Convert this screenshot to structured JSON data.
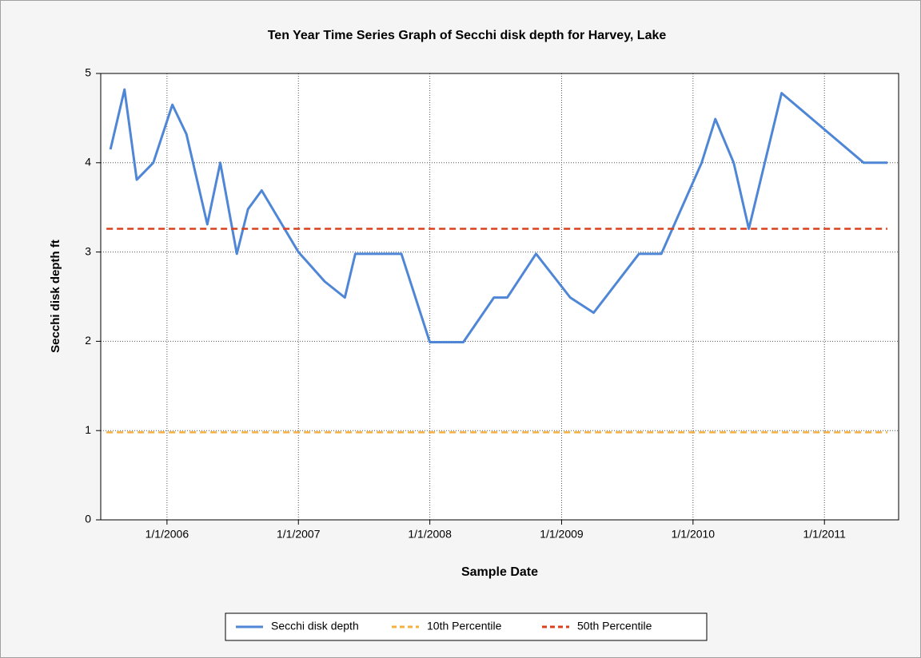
{
  "chart_data": {
    "type": "line",
    "title": "Ten Year Time Series Graph of Secchi disk depth for Harvey, Lake",
    "xlabel": "Sample Date",
    "ylabel": "Secchi disk depth ft",
    "x": [
      "2005-07-28",
      "2005-09-05",
      "2005-10-09",
      "2005-11-24",
      "2006-01-16",
      "2006-02-24",
      "2006-04-23",
      "2006-05-29",
      "2006-07-14",
      "2006-08-14",
      "2006-09-21",
      "2007-01-01",
      "2007-03-15",
      "2007-05-10",
      "2007-06-08",
      "2007-10-14",
      "2008-01-01",
      "2008-04-03",
      "2008-06-27",
      "2008-08-03",
      "2008-10-22",
      "2009-01-25",
      "2009-03-31",
      "2009-08-04",
      "2009-10-05",
      "2010-01-25",
      "2010-03-04",
      "2010-04-24",
      "2010-06-05",
      "2010-09-04",
      "2011-04-20",
      "2011-06-25"
    ],
    "series": [
      {
        "name": "Secchi disk depth",
        "color": "#4f86d6",
        "values": [
          4.15,
          4.82,
          3.81,
          4.0,
          4.65,
          4.32,
          3.31,
          4.0,
          2.98,
          3.48,
          3.69,
          3.0,
          2.67,
          2.49,
          2.98,
          2.98,
          1.99,
          1.99,
          2.49,
          2.49,
          2.98,
          2.49,
          2.32,
          2.98,
          2.98,
          4.0,
          4.49,
          4.0,
          3.26,
          4.78,
          4.0,
          4.0
        ]
      },
      {
        "name": "10th Percentile",
        "color": "#f5b042",
        "value": 0.98
      },
      {
        "name": "50th Percentile",
        "color": "#d9411e",
        "value": 3.26
      }
    ],
    "xlim": [
      "2005-07-01",
      "2011-07-26"
    ],
    "xticks": [
      {
        "value": "2006-01-01",
        "label": "1/1/2006"
      },
      {
        "value": "2007-01-01",
        "label": "1/1/2007"
      },
      {
        "value": "2008-01-01",
        "label": "1/1/2008"
      },
      {
        "value": "2009-01-01",
        "label": "1/1/2009"
      },
      {
        "value": "2010-01-01",
        "label": "1/1/2010"
      },
      {
        "value": "2011-01-01",
        "label": "1/1/2011"
      }
    ],
    "ylim": [
      0,
      5
    ],
    "yticks": [
      0,
      1,
      2,
      3,
      4,
      5
    ],
    "grid": true,
    "legend": "bottom"
  }
}
